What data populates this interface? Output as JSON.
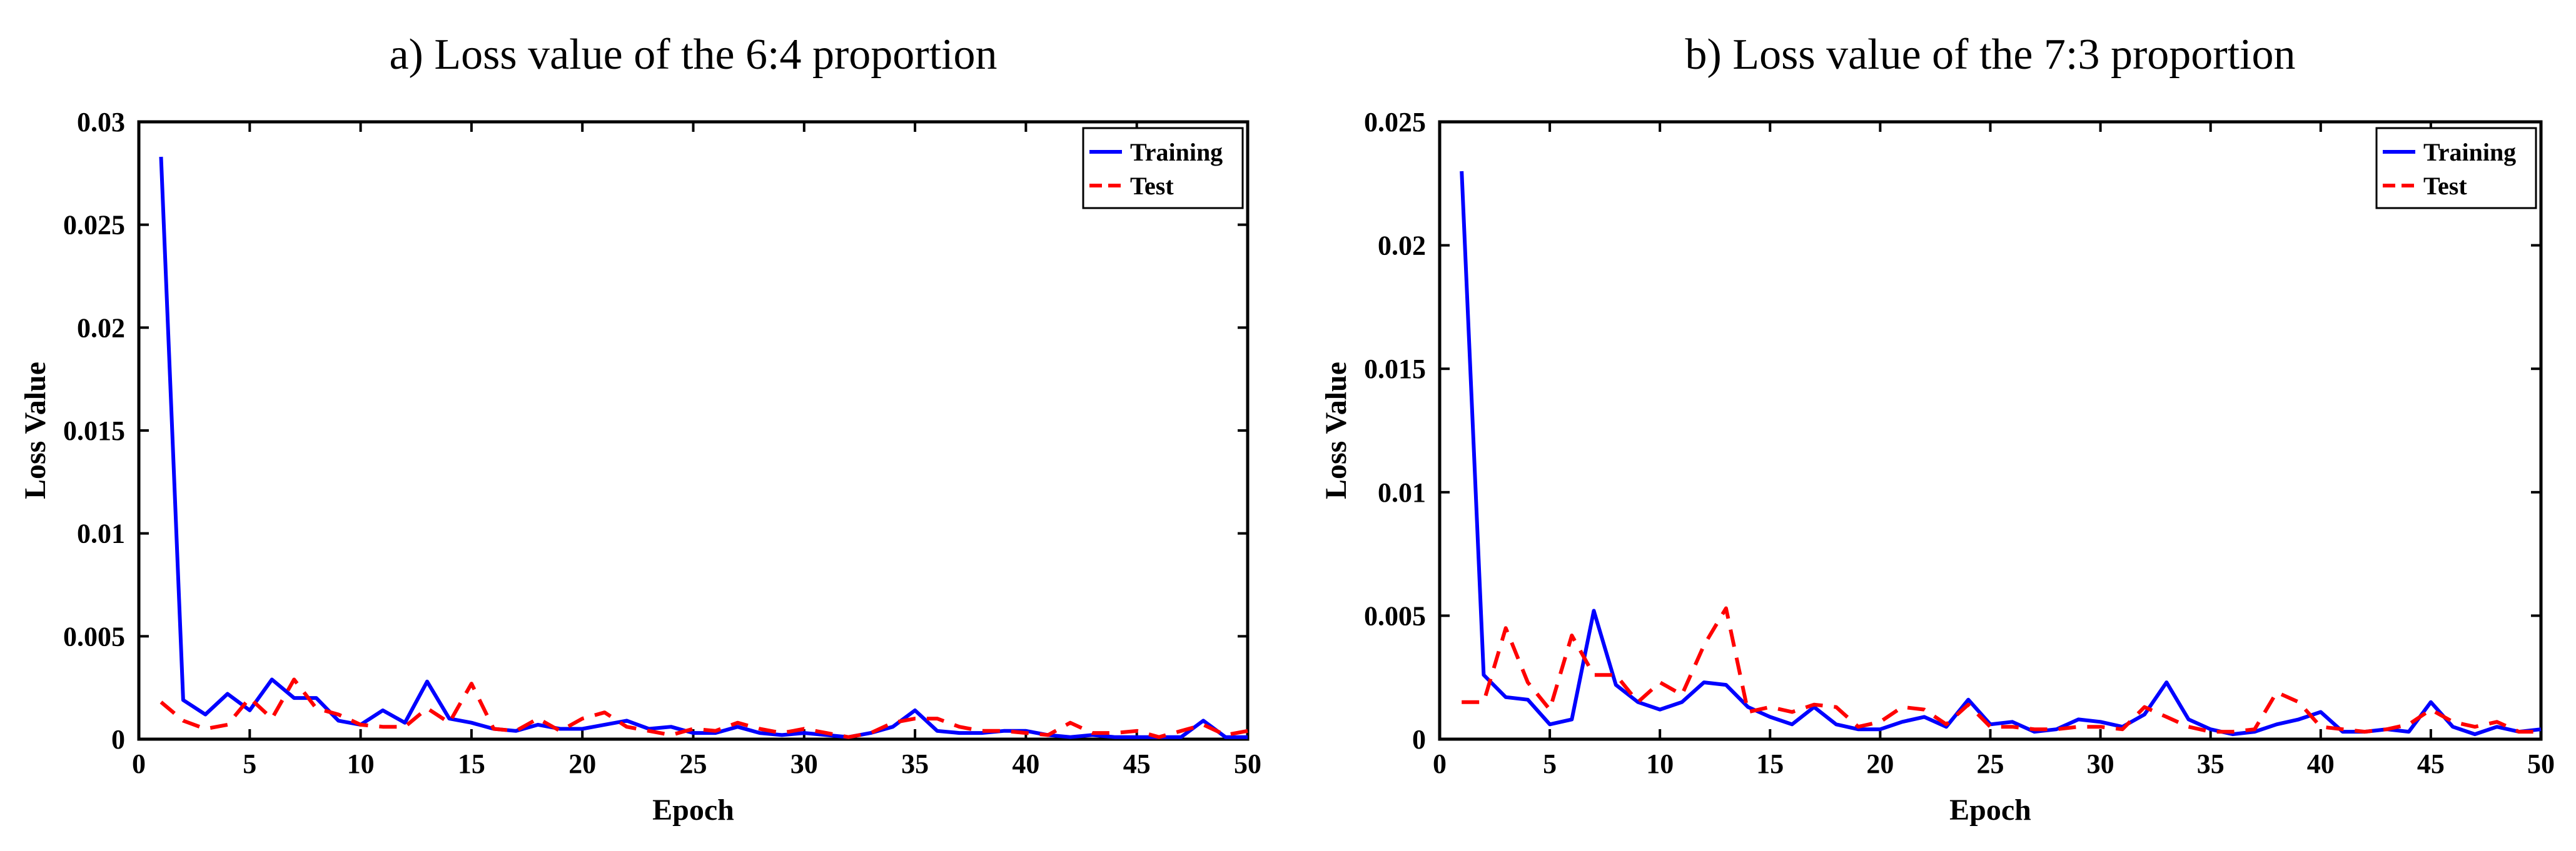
{
  "chart_data": [
    {
      "type": "line",
      "title": "a) Loss value of the 6:4 proportion",
      "xlabel": "Epoch",
      "ylabel": "Loss Value",
      "xlim": [
        0,
        50
      ],
      "ylim": [
        0,
        0.03
      ],
      "xticks": [
        0,
        5,
        10,
        15,
        20,
        25,
        30,
        35,
        40,
        45,
        50
      ],
      "xtick_labels": [
        "0",
        "5",
        "10",
        "15",
        "20",
        "25",
        "30",
        "35",
        "40",
        "45",
        "50"
      ],
      "yticks": [
        0,
        0.005,
        0.01,
        0.015,
        0.02,
        0.025,
        0.03
      ],
      "ytick_labels": [
        "0",
        "0.005",
        "0.01",
        "0.015",
        "0.02",
        "0.025",
        "0.03"
      ],
      "legend_position": "top-right",
      "legend": [
        "Training",
        "Test"
      ],
      "x": [
        1,
        2,
        3,
        4,
        5,
        6,
        7,
        8,
        9,
        10,
        11,
        12,
        13,
        14,
        15,
        16,
        17,
        18,
        19,
        20,
        21,
        22,
        23,
        24,
        25,
        26,
        27,
        28,
        29,
        30,
        31,
        32,
        33,
        34,
        35,
        36,
        37,
        38,
        39,
        40,
        41,
        42,
        43,
        44,
        45,
        46,
        47,
        48,
        49,
        50
      ],
      "series": [
        {
          "name": "Training",
          "color": "#0000ff",
          "style": "solid",
          "values": [
            0.0283,
            0.0019,
            0.0012,
            0.0022,
            0.0014,
            0.0029,
            0.002,
            0.002,
            0.0009,
            0.0007,
            0.0014,
            0.0008,
            0.0028,
            0.001,
            0.0008,
            0.0005,
            0.0004,
            0.0007,
            0.0005,
            0.0005,
            0.0007,
            0.0009,
            0.0005,
            0.0006,
            0.0003,
            0.0003,
            0.0006,
            0.0003,
            0.0002,
            0.0003,
            0.0002,
            0.0001,
            0.0003,
            0.0006,
            0.0014,
            0.0004,
            0.0003,
            0.0003,
            0.0004,
            0.0004,
            0.0002,
            0.0001,
            0.0002,
            0.0001,
            0.0001,
            0.0001,
            0.0001,
            0.0009,
            0.0001,
            0.0001
          ]
        },
        {
          "name": "Test",
          "color": "#ff0000",
          "style": "dashed",
          "values": [
            0.0018,
            0.0009,
            0.0005,
            0.0007,
            0.002,
            0.001,
            0.0029,
            0.0015,
            0.0012,
            0.0007,
            0.0006,
            0.0006,
            0.0015,
            0.0008,
            0.0027,
            0.0005,
            0.0004,
            0.001,
            0.0004,
            0.001,
            0.0013,
            0.0006,
            0.0004,
            0.0002,
            0.0005,
            0.0004,
            0.0008,
            0.0005,
            0.0003,
            0.0005,
            0.0003,
            0.0001,
            0.0003,
            0.0008,
            0.001,
            0.001,
            0.0006,
            0.0004,
            0.0004,
            0.0003,
            0.0002,
            0.0008,
            0.0003,
            0.0003,
            0.0004,
            0.0001,
            0.0004,
            0.0007,
            0.0002,
            0.0004
          ]
        }
      ]
    },
    {
      "type": "line",
      "title": "b) Loss value of the 7:3 proportion",
      "xlabel": "Epoch",
      "ylabel": "Loss Value",
      "xlim": [
        0,
        50
      ],
      "ylim": [
        0,
        0.025
      ],
      "xticks": [
        0,
        5,
        10,
        15,
        20,
        25,
        30,
        35,
        40,
        45,
        50
      ],
      "xtick_labels": [
        "0",
        "5",
        "10",
        "15",
        "20",
        "25",
        "30",
        "35",
        "40",
        "45",
        "50"
      ],
      "yticks": [
        0,
        0.005,
        0.01,
        0.015,
        0.02,
        0.025
      ],
      "ytick_labels": [
        "0",
        "0.005",
        "0.01",
        "0.015",
        "0.02",
        "0.025"
      ],
      "legend_position": "top-right",
      "legend": [
        "Training",
        "Test"
      ],
      "x": [
        1,
        2,
        3,
        4,
        5,
        6,
        7,
        8,
        9,
        10,
        11,
        12,
        13,
        14,
        15,
        16,
        17,
        18,
        19,
        20,
        21,
        22,
        23,
        24,
        25,
        26,
        27,
        28,
        29,
        30,
        31,
        32,
        33,
        34,
        35,
        36,
        37,
        38,
        39,
        40,
        41,
        42,
        43,
        44,
        45,
        46,
        47,
        48,
        49,
        50
      ],
      "series": [
        {
          "name": "Training",
          "color": "#0000ff",
          "style": "solid",
          "values": [
            0.023,
            0.0026,
            0.0017,
            0.0016,
            0.0006,
            0.0008,
            0.0052,
            0.0022,
            0.0015,
            0.0012,
            0.0015,
            0.0023,
            0.0022,
            0.0013,
            0.0009,
            0.0006,
            0.0013,
            0.0006,
            0.0004,
            0.0004,
            0.0007,
            0.0009,
            0.0005,
            0.0016,
            0.0006,
            0.0007,
            0.0003,
            0.0004,
            0.0008,
            0.0007,
            0.0005,
            0.001,
            0.0023,
            0.0008,
            0.0004,
            0.0002,
            0.0003,
            0.0006,
            0.0008,
            0.0011,
            0.0003,
            0.0003,
            0.0004,
            0.0003,
            0.0015,
            0.0005,
            0.0002,
            0.0005,
            0.0003,
            0.0004
          ]
        },
        {
          "name": "Test",
          "color": "#ff0000",
          "style": "dashed",
          "values": [
            0.0015,
            0.0015,
            0.0045,
            0.0023,
            0.0012,
            0.0042,
            0.0026,
            0.0026,
            0.0015,
            0.0023,
            0.0018,
            0.0038,
            0.0053,
            0.0011,
            0.0013,
            0.0011,
            0.0014,
            0.0013,
            0.0005,
            0.0007,
            0.0013,
            0.0012,
            0.0006,
            0.0014,
            0.0005,
            0.0005,
            0.0004,
            0.0004,
            0.0005,
            0.0005,
            0.0004,
            0.0013,
            0.0009,
            0.0005,
            0.0003,
            0.0003,
            0.0004,
            0.0019,
            0.0015,
            0.0005,
            0.0004,
            0.0003,
            0.0004,
            0.0006,
            0.0012,
            0.0007,
            0.0005,
            0.0007,
            0.0003,
            0.0003
          ]
        }
      ]
    }
  ]
}
